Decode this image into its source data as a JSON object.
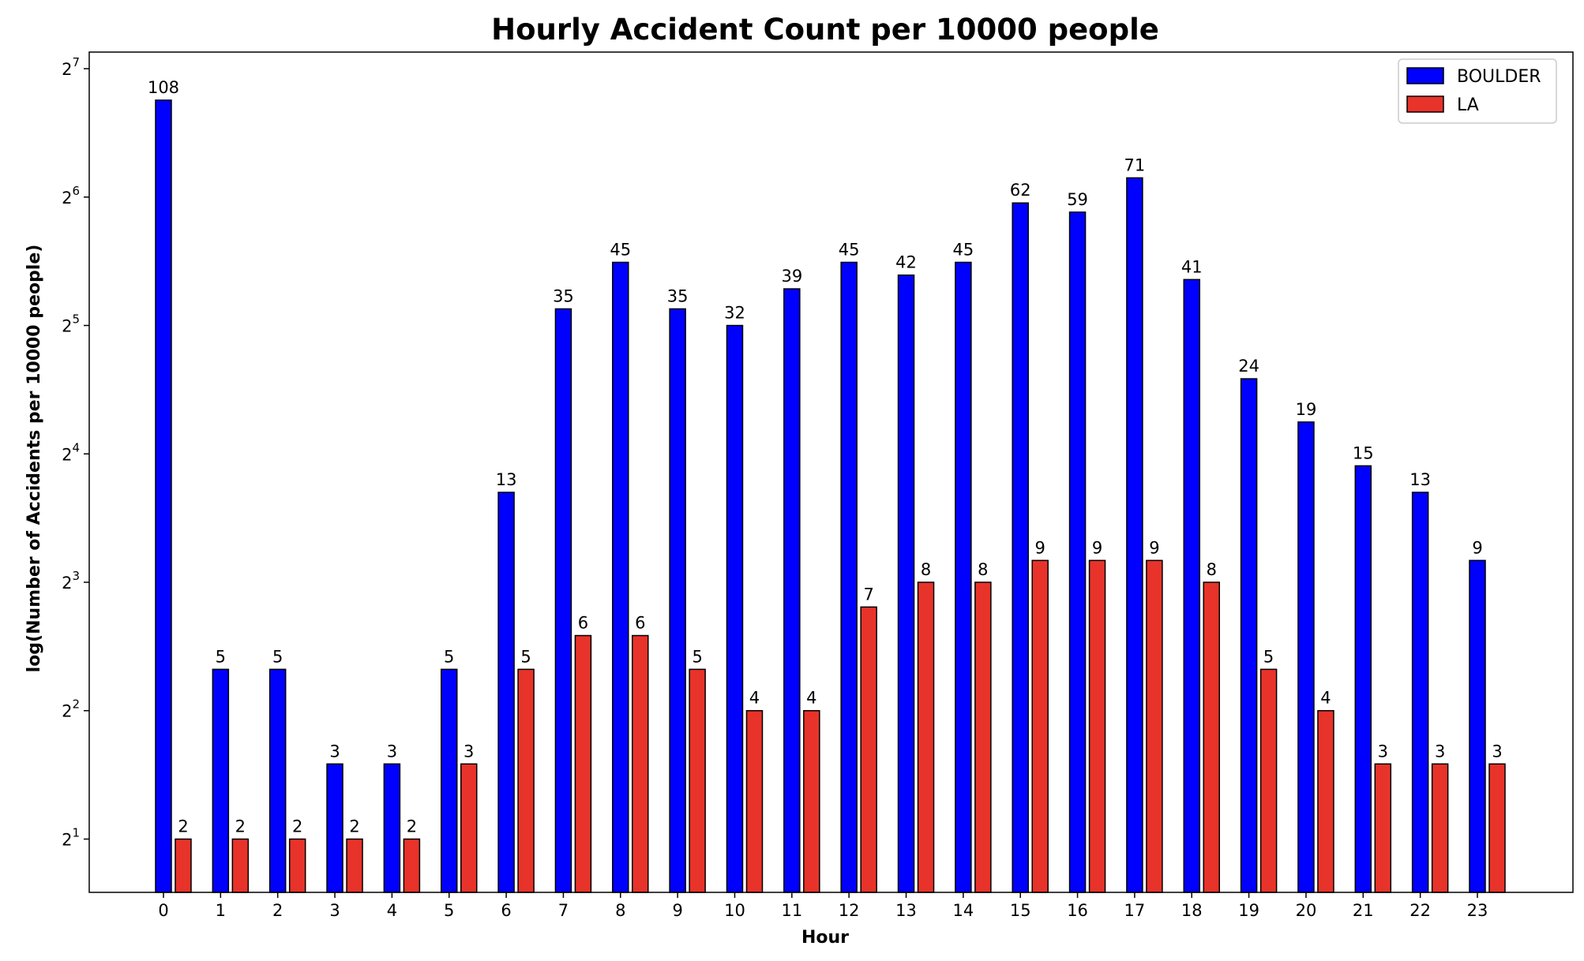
{
  "chart_data": {
    "type": "bar",
    "title": "Hourly Accident Count per 10000 people",
    "xlabel": "Hour",
    "ylabel": "log(Number of Accidents per 10000 people)",
    "yscale": "log2",
    "ylim": [
      1.5,
      140
    ],
    "ytick_base": "2",
    "yticks": [
      1,
      2,
      3,
      4,
      5,
      6,
      7
    ],
    "legend_position": "top-right",
    "categories": [
      "0",
      "1",
      "2",
      "3",
      "4",
      "5",
      "6",
      "7",
      "8",
      "9",
      "10",
      "11",
      "12",
      "13",
      "14",
      "15",
      "16",
      "17",
      "18",
      "19",
      "20",
      "21",
      "22",
      "23"
    ],
    "series": [
      {
        "name": "BOULDER",
        "color": "#0000ff",
        "values": [
          108,
          5,
          5,
          3,
          3,
          5,
          13,
          35,
          45,
          35,
          32,
          39,
          45,
          42,
          45,
          62,
          59,
          71,
          41,
          24,
          19,
          15,
          13,
          9
        ]
      },
      {
        "name": "LA",
        "color": "#e8332a",
        "values": [
          2,
          2,
          2,
          2,
          2,
          3,
          5,
          6,
          6,
          5,
          4,
          4,
          7,
          8,
          8,
          9,
          9,
          9,
          8,
          5,
          4,
          3,
          3,
          3
        ]
      }
    ]
  }
}
